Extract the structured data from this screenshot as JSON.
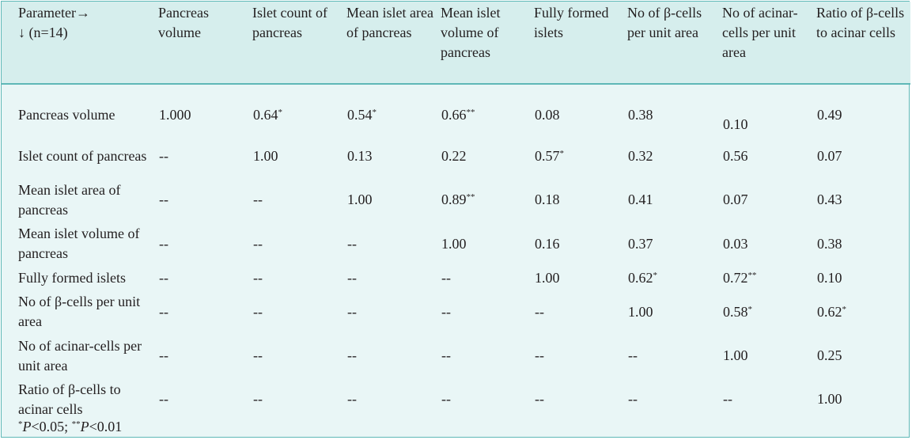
{
  "table": {
    "header_first": {
      "line1": "Parameter→",
      "line2": "↓ (n=14)"
    },
    "columns": [
      "Pancreas volume",
      "Islet count of pancreas",
      "Mean islet area of pancreas",
      "Mean islet volume of pancreas",
      "Fully formed islets",
      "No of β-cells per unit area",
      "No of acinar-cells per unit area",
      "Ratio of β-cells to acinar cells"
    ],
    "rows": [
      {
        "label": "Pancreas volume",
        "cells": [
          {
            "v": "1.000",
            "s": ""
          },
          {
            "v": "0.64",
            "s": "*"
          },
          {
            "v": "0.54",
            "s": "*"
          },
          {
            "v": "0.66",
            "s": "**"
          },
          {
            "v": "0.08",
            "s": ""
          },
          {
            "v": "0.38",
            "s": ""
          },
          {
            "v": "0.10",
            "s": ""
          },
          {
            "v": "0.49",
            "s": ""
          }
        ]
      },
      {
        "label": "Islet count of pancreas",
        "cells": [
          {
            "v": "--",
            "s": ""
          },
          {
            "v": "1.00",
            "s": ""
          },
          {
            "v": "0.13",
            "s": ""
          },
          {
            "v": "0.22",
            "s": ""
          },
          {
            "v": "0.57",
            "s": "*"
          },
          {
            "v": "0.32",
            "s": ""
          },
          {
            "v": "0.56",
            "s": ""
          },
          {
            "v": "0.07",
            "s": ""
          }
        ]
      },
      {
        "label": "Mean islet area of pancreas",
        "cells": [
          {
            "v": "--",
            "s": ""
          },
          {
            "v": "--",
            "s": ""
          },
          {
            "v": "1.00",
            "s": ""
          },
          {
            "v": "0.89",
            "s": "**"
          },
          {
            "v": "0.18",
            "s": ""
          },
          {
            "v": "0.41",
            "s": ""
          },
          {
            "v": "0.07",
            "s": ""
          },
          {
            "v": "0.43",
            "s": ""
          }
        ]
      },
      {
        "label": "Mean islet volume of pancreas",
        "cells": [
          {
            "v": "--",
            "s": ""
          },
          {
            "v": "--",
            "s": ""
          },
          {
            "v": "--",
            "s": ""
          },
          {
            "v": "1.00",
            "s": ""
          },
          {
            "v": "0.16",
            "s": ""
          },
          {
            "v": "0.37",
            "s": ""
          },
          {
            "v": "0.03",
            "s": ""
          },
          {
            "v": "0.38",
            "s": ""
          }
        ]
      },
      {
        "label": "Fully formed islets",
        "cells": [
          {
            "v": "--",
            "s": ""
          },
          {
            "v": "--",
            "s": ""
          },
          {
            "v": "--",
            "s": ""
          },
          {
            "v": "--",
            "s": ""
          },
          {
            "v": "1.00",
            "s": ""
          },
          {
            "v": "0.62",
            "s": "*"
          },
          {
            "v": "0.72",
            "s": "**"
          },
          {
            "v": "0.10",
            "s": ""
          }
        ]
      },
      {
        "label": "No of β-cells per unit area",
        "cells": [
          {
            "v": "--",
            "s": ""
          },
          {
            "v": "--",
            "s": ""
          },
          {
            "v": "--",
            "s": ""
          },
          {
            "v": "--",
            "s": ""
          },
          {
            "v": "--",
            "s": ""
          },
          {
            "v": "1.00",
            "s": ""
          },
          {
            "v": "0.58",
            "s": "*"
          },
          {
            "v": "0.62",
            "s": "*"
          }
        ]
      },
      {
        "label": "No of acinar-cells per unit area",
        "cells": [
          {
            "v": "--",
            "s": ""
          },
          {
            "v": "--",
            "s": ""
          },
          {
            "v": "--",
            "s": ""
          },
          {
            "v": "--",
            "s": ""
          },
          {
            "v": "--",
            "s": ""
          },
          {
            "v": "--",
            "s": ""
          },
          {
            "v": "1.00",
            "s": ""
          },
          {
            "v": "0.25",
            "s": ""
          }
        ]
      },
      {
        "label": "Ratio of β-cells to acinar cells",
        "cells": [
          {
            "v": "--",
            "s": ""
          },
          {
            "v": "--",
            "s": ""
          },
          {
            "v": "--",
            "s": ""
          },
          {
            "v": "--",
            "s": ""
          },
          {
            "v": "--",
            "s": ""
          },
          {
            "v": "--",
            "s": ""
          },
          {
            "v": "--",
            "s": ""
          },
          {
            "v": "1.00",
            "s": ""
          }
        ]
      }
    ]
  },
  "footnote": {
    "sup1": "*",
    "p1": "P",
    "t1": "<0.05; ",
    "sup2": "**",
    "p2": "P",
    "t2": "<0.01"
  }
}
